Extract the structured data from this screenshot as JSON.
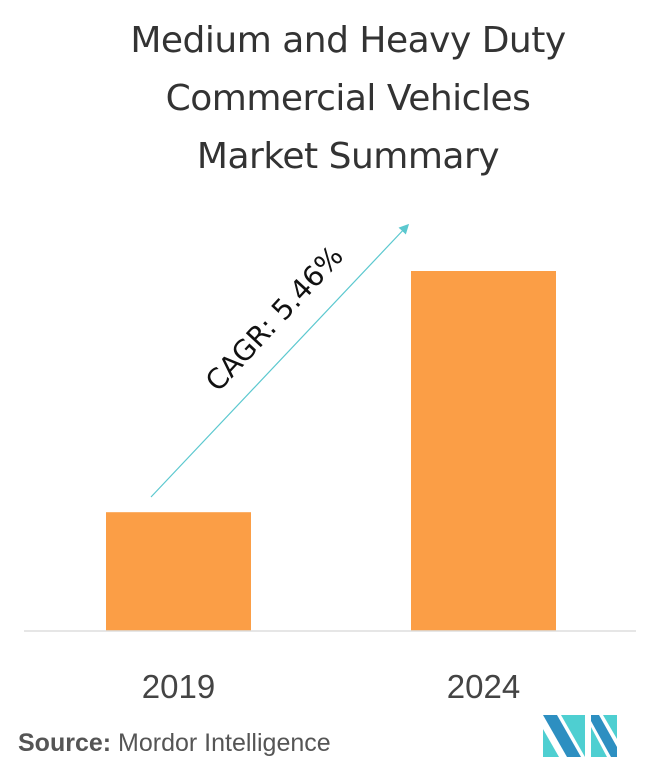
{
  "chart_data": {
    "type": "bar",
    "title": "Medium and Heavy Duty Commercial Vehicles Market Summary",
    "title_lines": [
      "Medium and Heavy Duty",
      "Commercial Vehicles",
      "Market Summary"
    ],
    "categories": [
      "2019",
      "2024"
    ],
    "values": [
      33,
      100
    ],
    "value_note": "relative bar heights; no axis values shown",
    "xlabel": "",
    "ylabel": "",
    "ylim": [
      0,
      100
    ],
    "grid": false,
    "annotation": "CAGR: 5.46%",
    "bar_color": "#FB9E46",
    "arrow_color": "#5BC8CF",
    "axis_color": "#DDDDDD"
  },
  "footer": {
    "source_label": "Source:",
    "source_value": "Mordor Intelligence"
  },
  "logo": {
    "name": "mordor-intelligence-logo",
    "colors": [
      "#2D8FC1",
      "#4ECFD1"
    ]
  }
}
